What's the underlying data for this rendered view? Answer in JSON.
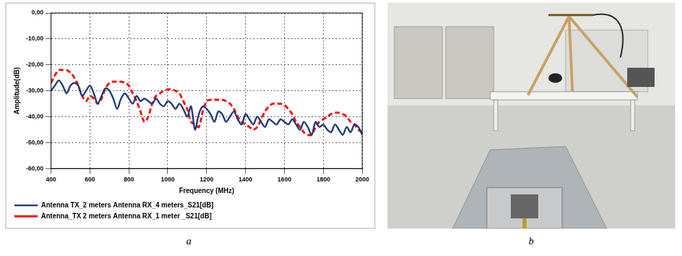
{
  "chart_data": {
    "type": "line",
    "panel_label": "a",
    "xlabel": "Frequency (MHz)",
    "ylabel": "Amplitude(dB)",
    "x": [
      400,
      420,
      440,
      460,
      480,
      500,
      520,
      540,
      560,
      580,
      600,
      620,
      640,
      660,
      680,
      700,
      720,
      740,
      760,
      780,
      800,
      820,
      840,
      860,
      880,
      900,
      920,
      940,
      960,
      980,
      1000,
      1020,
      1040,
      1060,
      1080,
      1100,
      1120,
      1140,
      1160,
      1180,
      1200,
      1220,
      1240,
      1260,
      1280,
      1300,
      1320,
      1340,
      1360,
      1380,
      1400,
      1420,
      1440,
      1460,
      1480,
      1500,
      1520,
      1540,
      1560,
      1580,
      1600,
      1620,
      1640,
      1660,
      1680,
      1700,
      1720,
      1740,
      1760,
      1780,
      1800,
      1820,
      1840,
      1860,
      1880,
      1900,
      1920,
      1940,
      1960,
      1980,
      2000
    ],
    "xlim": [
      400,
      2000
    ],
    "xticks": [
      400,
      600,
      800,
      1000,
      1200,
      1400,
      1600,
      1800,
      2000
    ],
    "ylim": [
      -60,
      0
    ],
    "yticks": [
      {
        "value": -60,
        "label": "-60,00"
      },
      {
        "value": -50,
        "label": "-50,00"
      },
      {
        "value": -40,
        "label": "-40,00"
      },
      {
        "value": -30,
        "label": "-30,00"
      },
      {
        "value": -20,
        "label": "-20,00"
      },
      {
        "value": -10,
        "label": "-10,00"
      },
      {
        "value": 0,
        "label": "0,00"
      }
    ],
    "grid": true,
    "legend": "bottom",
    "series": [
      {
        "name": "Antenna TX_2 meters Antenna RX_4 meters_S21[dB]",
        "color": "#1f3b7a",
        "line_style": "solid",
        "values": [
          -30,
          -28,
          -26,
          -28,
          -31,
          -28,
          -27,
          -28,
          -32,
          -30,
          -28,
          -31,
          -35,
          -32,
          -29,
          -30,
          -33,
          -37,
          -33,
          -31,
          -33,
          -35,
          -32,
          -34,
          -33,
          -34,
          -35,
          -33,
          -35,
          -36,
          -34,
          -35,
          -37,
          -35,
          -37,
          -40,
          -36,
          -45,
          -39,
          -36,
          -37,
          -39,
          -42,
          -38,
          -39,
          -42,
          -40,
          -38,
          -41,
          -43,
          -39,
          -41,
          -43,
          -40,
          -42,
          -44,
          -41,
          -42,
          -43,
          -41,
          -42,
          -43,
          -41,
          -43,
          -45,
          -42,
          -44,
          -47,
          -42,
          -44,
          -43,
          -45,
          -46,
          -43,
          -45,
          -47,
          -44,
          -46,
          -43,
          -44,
          -47
        ]
      },
      {
        "name": "Antenna_TX 2 meters Antenna RX_1 meter _S21[dB]",
        "color": "#ff0000",
        "line_style": "dashed",
        "values": [
          -27,
          -24,
          -22,
          -22,
          -22,
          -23,
          -25,
          -28,
          -32,
          -34,
          -32,
          -33,
          -35,
          -33,
          -29,
          -27,
          -26.5,
          -26.5,
          -26.5,
          -27,
          -28,
          -31,
          -34,
          -38,
          -42,
          -40,
          -35,
          -32,
          -31,
          -30,
          -29.5,
          -29.5,
          -30,
          -31,
          -34,
          -37,
          -42,
          -43,
          -44,
          -38,
          -34,
          -33.5,
          -33.5,
          -33.5,
          -33.5,
          -34,
          -35,
          -37,
          -40,
          -42,
          -43,
          -44,
          -45,
          -44,
          -41,
          -38,
          -36,
          -35,
          -35,
          -35,
          -35.5,
          -37,
          -39,
          -42,
          -44,
          -46,
          -47,
          -47,
          -44,
          -42,
          -41,
          -40,
          -39,
          -38.5,
          -38.5,
          -39,
          -40,
          -42,
          -43,
          -45,
          -46
        ]
      }
    ]
  },
  "photo": {
    "panel_label": "b"
  }
}
